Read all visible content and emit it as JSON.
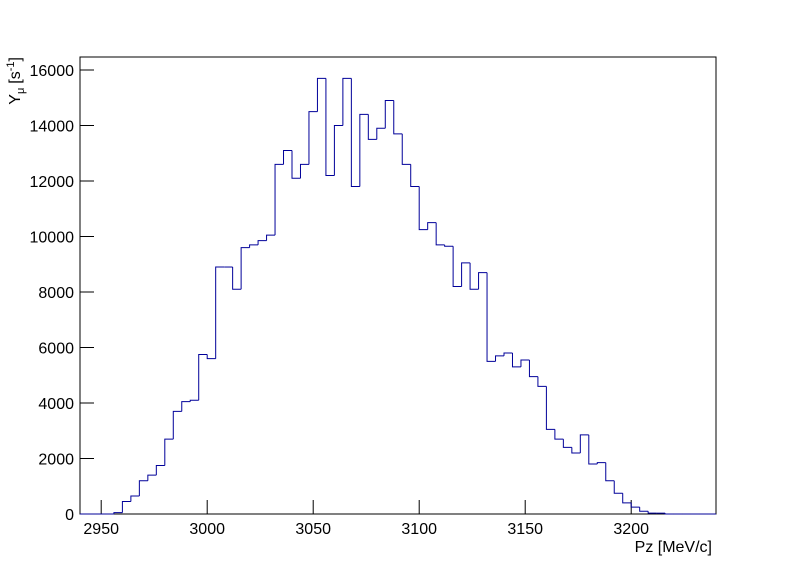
{
  "chart_data": {
    "type": "histogram",
    "xlabel": "Pz [MeV/c]",
    "ylabel_parts": [
      "Y",
      "μ",
      "[s",
      "-1",
      "]"
    ],
    "color": "#000099",
    "bins": [
      2940,
      2944,
      2948,
      2952,
      2956,
      2960,
      2964,
      2968,
      2972,
      2976,
      2980,
      2984,
      2988,
      2992,
      2996,
      3000,
      3004,
      3008,
      3012,
      3016,
      3020,
      3024,
      3028,
      3032,
      3036,
      3040,
      3044,
      3048,
      3052,
      3056,
      3060,
      3064,
      3068,
      3072,
      3076,
      3080,
      3084,
      3088,
      3092,
      3096,
      3100,
      3104,
      3108,
      3112,
      3116,
      3120,
      3124,
      3128,
      3132,
      3136,
      3140,
      3144,
      3148,
      3152,
      3156,
      3160,
      3164,
      3168,
      3172,
      3176,
      3180,
      3184,
      3188,
      3192,
      3196,
      3200,
      3204,
      3208,
      3212,
      3216,
      3220,
      3224,
      3228,
      3232,
      3236,
      3240
    ],
    "values": [
      0,
      0,
      0,
      0,
      50,
      450,
      650,
      1200,
      1400,
      1750,
      2700,
      3700,
      4050,
      4100,
      5750,
      5600,
      8900,
      8900,
      8100,
      9600,
      9700,
      9850,
      10050,
      12600,
      13100,
      12100,
      12600,
      14500,
      15700,
      12200,
      14000,
      15700,
      11800,
      14400,
      13500,
      13900,
      14900,
      13700,
      12600,
      11800,
      10250,
      10500,
      9700,
      9650,
      8200,
      9050,
      8100,
      8700,
      5500,
      5700,
      5800,
      5300,
      5550,
      4950,
      4600,
      3050,
      2700,
      2400,
      2200,
      2850,
      1800,
      1850,
      1200,
      750,
      400,
      250,
      100,
      30,
      30,
      0,
      0,
      0,
      0,
      0,
      0
    ],
    "xlim": [
      2940,
      3240
    ],
    "ylim": [
      0,
      16000
    ],
    "xticks": [
      2950,
      3000,
      3050,
      3100,
      3150,
      3200
    ],
    "yticks": [
      0,
      2000,
      4000,
      6000,
      8000,
      10000,
      12000,
      14000,
      16000
    ]
  }
}
